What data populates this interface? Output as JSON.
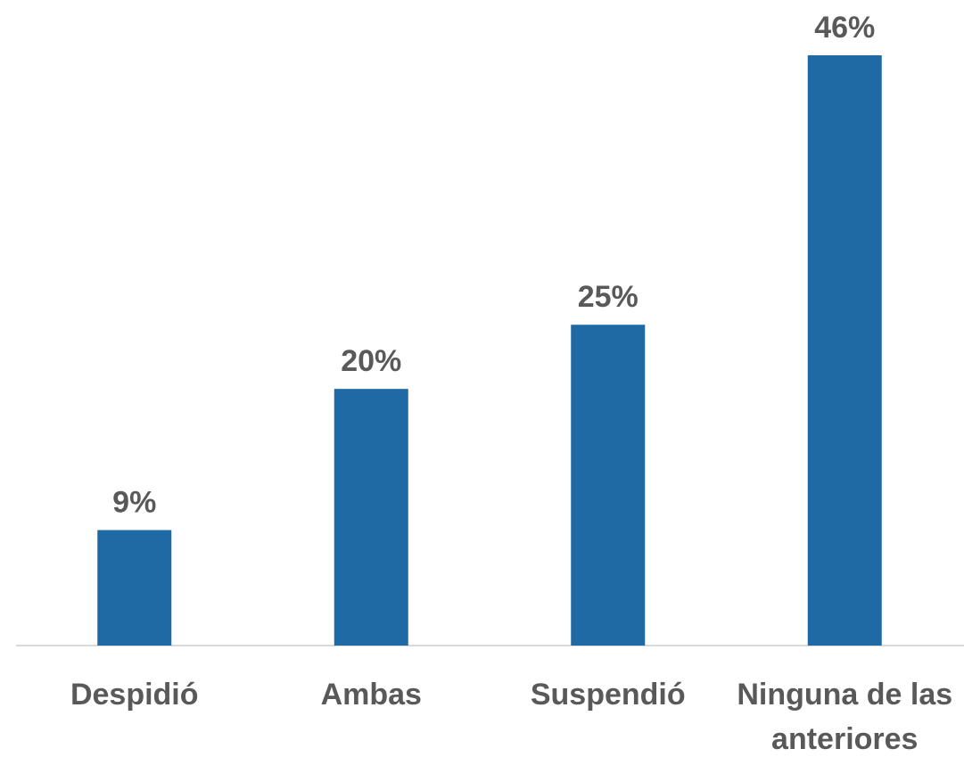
{
  "chart_data": {
    "type": "bar",
    "title": "",
    "xlabel": "",
    "ylabel": "",
    "categories": [
      "Despidió",
      "Ambas",
      "Suspendió",
      "Ninguna de las anteriores"
    ],
    "category_lines": [
      [
        "Despidió"
      ],
      [
        "Ambas"
      ],
      [
        "Suspendió"
      ],
      [
        "Ninguna de las",
        "anteriores"
      ]
    ],
    "values": [
      9,
      20,
      25,
      46
    ],
    "value_labels": [
      "9%",
      "20%",
      "25%",
      "46%"
    ],
    "unit": "%",
    "ylim": [
      0,
      46
    ],
    "grid": false,
    "legend": "none",
    "colors": {
      "bar": "#1F6AA5",
      "axis": "#D9D9D9",
      "text": "#595959"
    }
  }
}
